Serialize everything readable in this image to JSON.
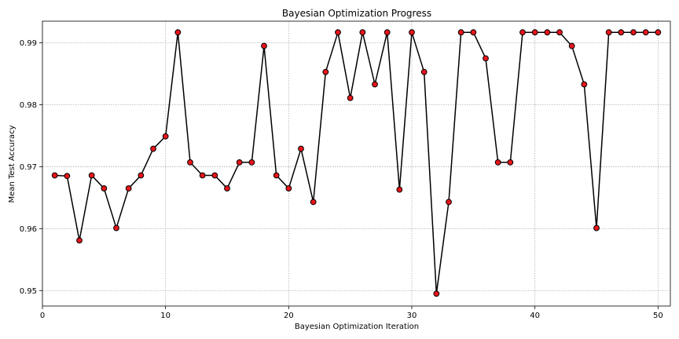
{
  "chart_data": {
    "type": "line",
    "title": "Bayesian Optimization Progress",
    "xlabel": "Bayesian Optimization Iteration",
    "ylabel": "Mean Test Accuracy",
    "xlim": [
      0,
      51
    ],
    "ylim": [
      0.9475,
      0.9935
    ],
    "xticks": [
      0,
      10,
      20,
      30,
      40,
      50
    ],
    "yticks": [
      0.95,
      0.96,
      0.97,
      0.98,
      0.99
    ],
    "grid": true,
    "x": [
      1,
      2,
      3,
      4,
      5,
      6,
      7,
      8,
      9,
      10,
      11,
      12,
      13,
      14,
      15,
      16,
      17,
      18,
      19,
      20,
      21,
      22,
      23,
      24,
      25,
      26,
      27,
      28,
      29,
      30,
      31,
      32,
      33,
      34,
      35,
      36,
      37,
      38,
      39,
      40,
      41,
      42,
      43,
      44,
      45,
      46,
      47,
      48,
      49,
      50
    ],
    "series": [
      {
        "values": [
          0.9686,
          0.9685,
          0.9581,
          0.9686,
          0.9665,
          0.9601,
          0.9665,
          0.9686,
          0.9729,
          0.9749,
          0.9917,
          0.9707,
          0.9686,
          0.9686,
          0.9665,
          0.9707,
          0.9707,
          0.9895,
          0.9686,
          0.9665,
          0.9729,
          0.9643,
          0.9853,
          0.9917,
          0.9811,
          0.9917,
          0.9833,
          0.9917,
          0.9663,
          0.9917,
          0.9853,
          0.9495,
          0.9643,
          0.9917,
          0.9917,
          0.9875,
          0.9707,
          0.9707,
          0.9917,
          0.9917,
          0.9917,
          0.9917,
          0.9895,
          0.9833,
          0.9601,
          0.9917,
          0.9917,
          0.9917,
          0.9917,
          0.9917
        ],
        "line_color": "#000000",
        "marker_color": "#e8151b",
        "marker_edge": "#000000"
      }
    ]
  }
}
